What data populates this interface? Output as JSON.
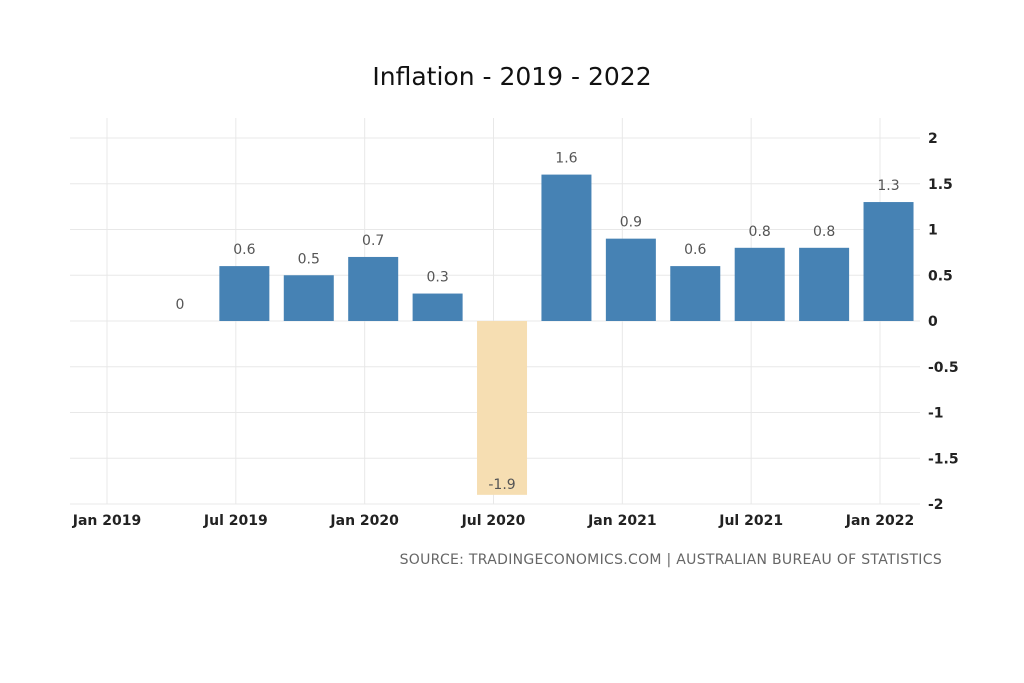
{
  "title": "Inflation - 2019 - 2022",
  "source": "SOURCE: TRADINGECONOMICS.COM | AUSTRALIAN BUREAU OF STATISTICS",
  "colors": {
    "positive": "#4682b4",
    "negative": "#f6deb2",
    "grid": "#e8e8e8"
  },
  "chart_data": {
    "type": "bar",
    "title": "Inflation - 2019 - 2022",
    "xlabel": "",
    "ylabel": "",
    "x": [
      "2019-03",
      "2019-06",
      "2019-09",
      "2019-12",
      "2020-03",
      "2020-06",
      "2020-09",
      "2020-12",
      "2021-03",
      "2021-06",
      "2021-09",
      "2021-12"
    ],
    "values": [
      0,
      0.6,
      0.5,
      0.7,
      0.3,
      -1.9,
      1.6,
      0.9,
      0.6,
      0.8,
      0.8,
      1.3
    ],
    "data_labels": [
      "0",
      "0.6",
      "0.5",
      "0.7",
      "0.3",
      "-1.9",
      "1.6",
      "0.9",
      "0.6",
      "0.8",
      "0.8",
      "1.3"
    ],
    "ylim": [
      -2,
      2
    ],
    "y_ticks": [
      "2",
      "1.5",
      "1",
      "0.5",
      "0",
      "-0.5",
      "-1",
      "-1.5",
      "-2"
    ],
    "x_ticks": [
      "Jan 2019",
      "Jul 2019",
      "Jan 2020",
      "Jul 2020",
      "Jan 2021",
      "Jul 2021",
      "Jan 2022"
    ],
    "y_axis_position": "right",
    "grid": true,
    "legend": "none"
  }
}
